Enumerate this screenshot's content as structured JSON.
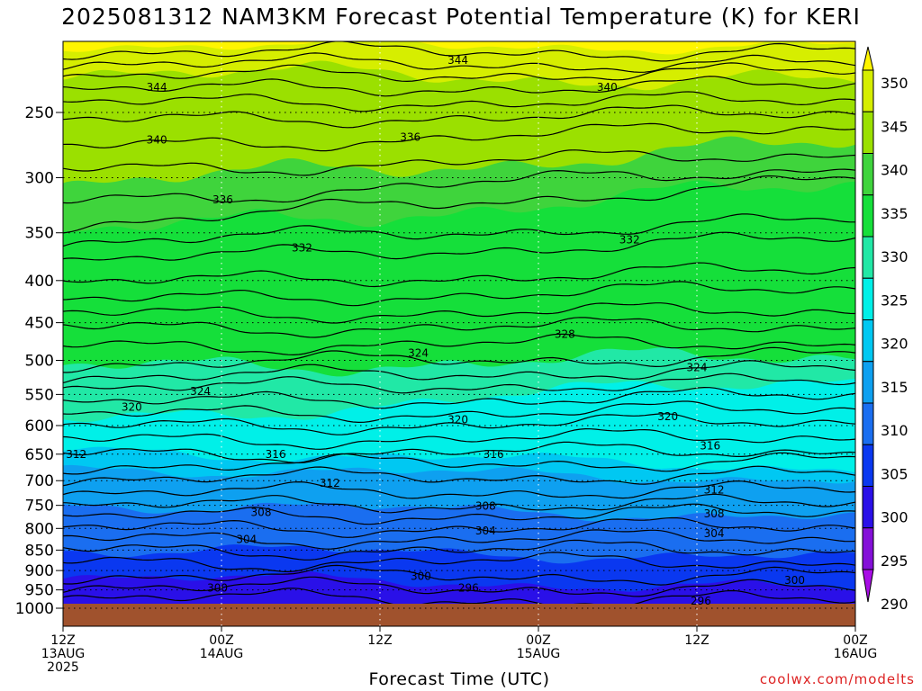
{
  "title": "2025081312 NAM3KM Forecast Potential Temperature (K) for KERI",
  "x_axis_title": "Forecast Time (UTC)",
  "credit": "coolwx.com/modelts",
  "chart_data": {
    "type": "heatmap",
    "title": "2025081312 NAM3KM Forecast Potential Temperature (K) for KERI",
    "xlabel": "Forecast Time (UTC)",
    "ylabel": "",
    "x_ticks": [
      {
        "hours": 0,
        "lines": [
          "12Z",
          "13AUG",
          "2025"
        ]
      },
      {
        "hours": 12,
        "lines": [
          "00Z",
          "14AUG"
        ]
      },
      {
        "hours": 24,
        "lines": [
          "12Z"
        ]
      },
      {
        "hours": 36,
        "lines": [
          "00Z",
          "15AUG"
        ]
      },
      {
        "hours": 48,
        "lines": [
          "12Z"
        ]
      },
      {
        "hours": 60,
        "lines": [
          "00Z",
          "16AUG"
        ]
      }
    ],
    "xlim_hours": [
      0,
      60
    ],
    "y_ticks": [
      250,
      300,
      350,
      400,
      450,
      500,
      550,
      600,
      650,
      700,
      750,
      800,
      850,
      900,
      950,
      1000
    ],
    "ylim": [
      1000,
      200
    ],
    "y_scale": "log-pressure",
    "grid": true,
    "colorbar": {
      "labels": [
        350,
        345,
        340,
        335,
        330,
        325,
        320,
        315,
        310,
        305,
        300,
        295,
        290
      ],
      "colors": [
        "#fff500",
        "#d6ee00",
        "#9be000",
        "#3fd43c",
        "#15df3a",
        "#21e8a6",
        "#00f0e8",
        "#00c8f2",
        "#0ea0f0",
        "#1a6ef0",
        "#0a38f0",
        "#2a10e8",
        "#8410d8",
        "#a80ee6"
      ]
    },
    "contour_levels": [
      296,
      300,
      304,
      308,
      312,
      316,
      320,
      324,
      328,
      332,
      336,
      340,
      344
    ],
    "contour_labels": [
      {
        "text": "344",
        "hours": 7.1,
        "p": 233
      },
      {
        "text": "344",
        "hours": 29.9,
        "p": 216
      },
      {
        "text": "340",
        "hours": 7.1,
        "p": 270
      },
      {
        "text": "340",
        "hours": 41.2,
        "p": 233
      },
      {
        "text": "336",
        "hours": 12.1,
        "p": 319
      },
      {
        "text": "336",
        "hours": 26.3,
        "p": 268
      },
      {
        "text": "332",
        "hours": 18.1,
        "p": 365
      },
      {
        "text": "332",
        "hours": 42.9,
        "p": 357
      },
      {
        "text": "328",
        "hours": 38.0,
        "p": 465
      },
      {
        "text": "324",
        "hours": 26.9,
        "p": 490
      },
      {
        "text": "324",
        "hours": 10.4,
        "p": 545
      },
      {
        "text": "324",
        "hours": 48.0,
        "p": 510
      },
      {
        "text": "320",
        "hours": 5.2,
        "p": 570
      },
      {
        "text": "320",
        "hours": 29.9,
        "p": 590
      },
      {
        "text": "320",
        "hours": 45.8,
        "p": 585
      },
      {
        "text": "316",
        "hours": 16.1,
        "p": 650
      },
      {
        "text": "316",
        "hours": 32.6,
        "p": 650
      },
      {
        "text": "316",
        "hours": 49.0,
        "p": 635
      },
      {
        "text": "312",
        "hours": 1.0,
        "p": 650
      },
      {
        "text": "312",
        "hours": 20.2,
        "p": 705
      },
      {
        "text": "312",
        "hours": 49.3,
        "p": 718
      },
      {
        "text": "308",
        "hours": 15.0,
        "p": 765
      },
      {
        "text": "308",
        "hours": 32.0,
        "p": 752
      },
      {
        "text": "308",
        "hours": 49.3,
        "p": 768
      },
      {
        "text": "304",
        "hours": 13.9,
        "p": 825
      },
      {
        "text": "304",
        "hours": 32.0,
        "p": 805
      },
      {
        "text": "304",
        "hours": 49.3,
        "p": 812
      },
      {
        "text": "300",
        "hours": 11.7,
        "p": 945
      },
      {
        "text": "300",
        "hours": 27.1,
        "p": 915
      },
      {
        "text": "300",
        "hours": 55.4,
        "p": 925
      },
      {
        "text": "296",
        "hours": 30.7,
        "p": 945
      },
      {
        "text": "296",
        "hours": 48.3,
        "p": 980
      }
    ]
  }
}
